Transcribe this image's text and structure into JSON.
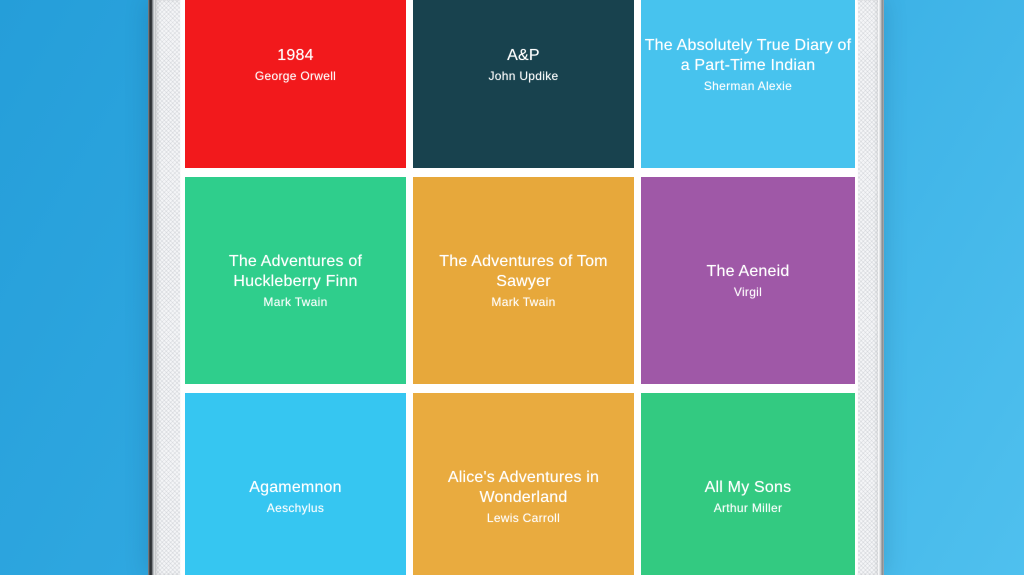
{
  "colors": {
    "background_top_left": "#259ED9",
    "background_bottom_right": "#4FC0EE",
    "screen_background": "#FFFFFF",
    "bezel": "#F4F5F7",
    "tile_text": "#FFFFFF"
  },
  "books": [
    {
      "title": "1984",
      "title_lines": [
        "1984"
      ],
      "author": "George Orwell",
      "color": "#F2191C"
    },
    {
      "title": "A&P",
      "title_lines": [
        "A&P"
      ],
      "author": "John Updike",
      "color": "#18424E"
    },
    {
      "title": "The Absolutely True Diary of a Part-Time Indian",
      "title_lines": [
        "The Absolutely True Diary of",
        "a Part-Time Indian"
      ],
      "author": "Sherman Alexie",
      "color": "#47C3EE"
    },
    {
      "title": "The Adventures of Huckleberry Finn",
      "title_lines": [
        "The Adventures of",
        "Huckleberry Finn"
      ],
      "author": "Mark Twain",
      "color": "#2FCE8C"
    },
    {
      "title": "The Adventures of Tom Sawyer",
      "title_lines": [
        "The Adventures of Tom",
        "Sawyer"
      ],
      "author": "Mark Twain",
      "color": "#E7A83B"
    },
    {
      "title": "The Aeneid",
      "title_lines": [
        "The Aeneid"
      ],
      "author": "Virgil",
      "color": "#9F58A7"
    },
    {
      "title": "Agamemnon",
      "title_lines": [
        "Agamemnon"
      ],
      "author": "Aeschylus",
      "color": "#36C6F1"
    },
    {
      "title": "Alice's Adventures in Wonderland",
      "title_lines": [
        "Alice's Adventures in",
        "Wonderland"
      ],
      "author": "Lewis Carroll",
      "color": "#E9AB3F"
    },
    {
      "title": "All My Sons",
      "title_lines": [
        "All My Sons"
      ],
      "author": "Arthur Miller",
      "color": "#33CA81"
    }
  ]
}
